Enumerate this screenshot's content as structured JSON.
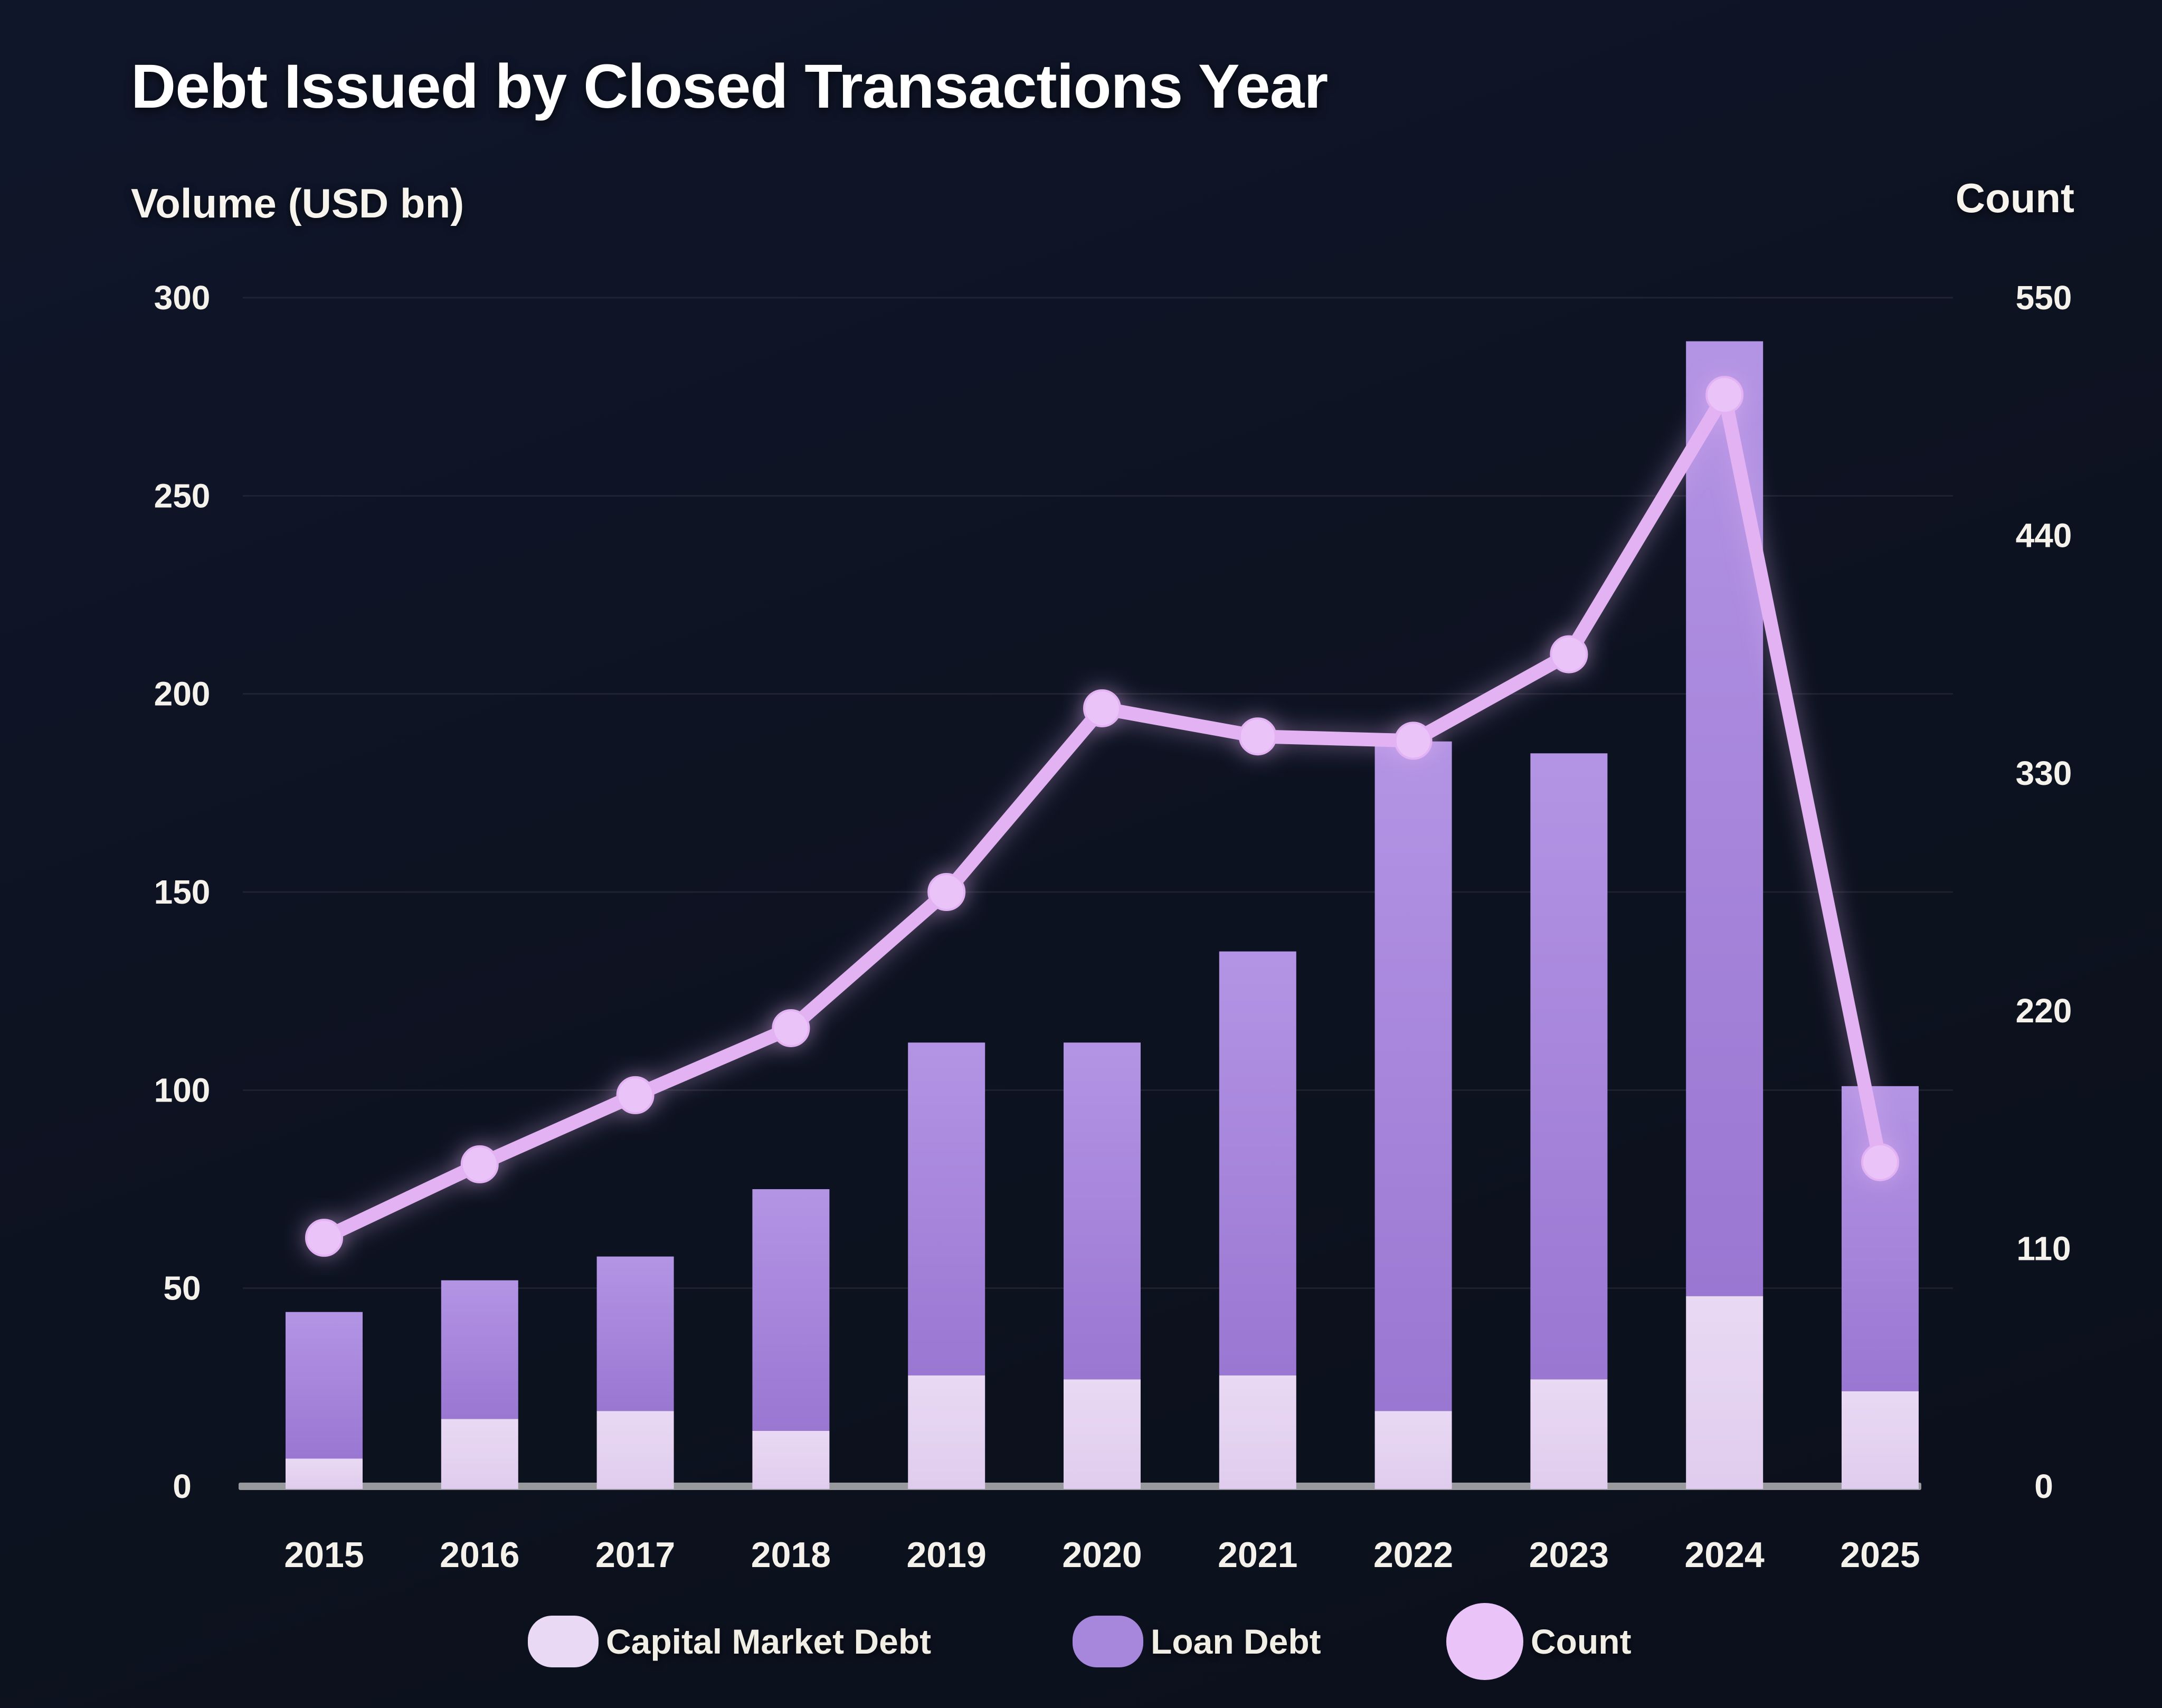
{
  "title": "Debt Issued by Closed Transactions Year",
  "left_axis": {
    "label": "Volume (USD bn)"
  },
  "right_axis": {
    "label": "Count"
  },
  "legend": {
    "capital_label": "Capital Market Debt",
    "loan_label": "Loan Debt",
    "count_label": "Count"
  },
  "colors": {
    "background": "#0d1220",
    "capital_market_debt": "#e9d9f4",
    "capital_market_debt_dark": "#e0ccee",
    "loan_debt": "#a687dc",
    "loan_debt_light": "#b394e4",
    "loan_debt_dark": "#9a77d2",
    "count_line": "#e3b2f3",
    "count_marker": "#eac4f8",
    "gridline": "rgba(255,255,255,0.07)",
    "axis_line": "#97999c",
    "tick_text": "#f5f2ec"
  },
  "chart_data": {
    "type": "bar",
    "subtype": "stacked-bars-with-line",
    "title": "Debt Issued by Closed Transactions Year",
    "ylabel_left": "Volume (USD bn)",
    "ylabel_right": "Count",
    "ylim_left": [
      0,
      300
    ],
    "ylim_right": [
      0,
      550
    ],
    "yticks_left": [
      0,
      50,
      100,
      150,
      200,
      250,
      300
    ],
    "yticks_right": [
      0,
      110,
      220,
      330,
      440,
      550
    ],
    "grid": "horizontal",
    "legend_position": "bottom",
    "categories": [
      "2015",
      "2016",
      "2017",
      "2018",
      "2019",
      "2020",
      "2021",
      "2022",
      "2023",
      "2024",
      "2025"
    ],
    "series": [
      {
        "name": "Capital Market Debt",
        "type": "bar",
        "stacked": true,
        "axis": "left",
        "values": [
          7,
          17,
          19,
          14,
          28,
          27,
          28,
          19,
          27,
          48,
          24
        ]
      },
      {
        "name": "Loan Debt",
        "type": "bar",
        "stacked": true,
        "axis": "left",
        "values": [
          37,
          35,
          39,
          61,
          84,
          85,
          107,
          169,
          158,
          241,
          77
        ]
      },
      {
        "name": "Count",
        "type": "line",
        "axis": "right",
        "values": [
          115,
          149,
          181,
          212,
          275,
          360,
          347,
          345,
          385,
          505,
          150
        ]
      }
    ]
  }
}
